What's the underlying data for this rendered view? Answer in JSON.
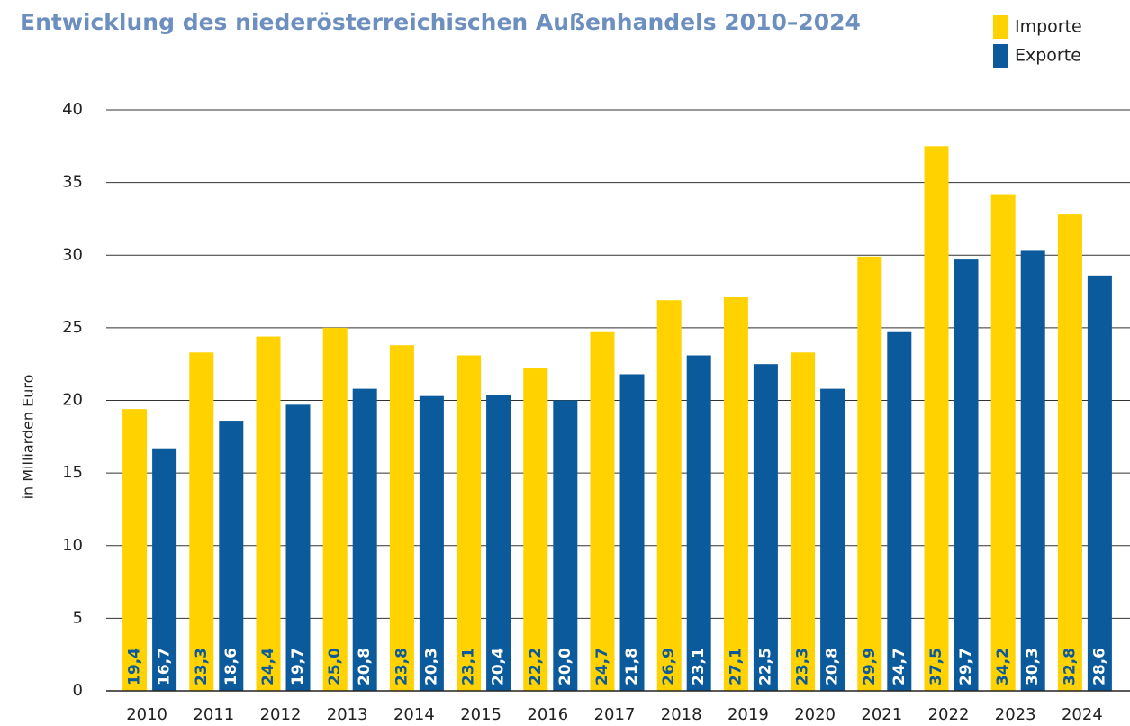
{
  "chart_data": {
    "type": "bar",
    "title": "Entwicklung des niederösterreichischen Außenhandels 2010–2024",
    "y_label": "in Milliarden Euro",
    "categories": [
      "2010",
      "2011",
      "2012",
      "2013",
      "2014",
      "2015",
      "2016",
      "2017",
      "2018",
      "2019",
      "2020",
      "2021",
      "2022",
      "2023",
      "2024"
    ],
    "series": [
      {
        "name": "Importe",
        "color": "#ffd200",
        "values": [
          19.4,
          23.3,
          24.4,
          25.0,
          23.8,
          23.1,
          22.2,
          24.7,
          26.9,
          27.1,
          23.3,
          29.9,
          37.5,
          34.2,
          32.8
        ],
        "value_labels": [
          "19,4",
          "23,3",
          "24,4",
          "25,0",
          "23,8",
          "23,1",
          "22,2",
          "24,7",
          "26,9",
          "27,1",
          "23,3",
          "29,9",
          "37,5",
          "34,2",
          "32,8"
        ]
      },
      {
        "name": "Exporte",
        "color": "#0a5a9c",
        "values": [
          16.7,
          18.6,
          19.7,
          20.8,
          20.3,
          20.4,
          20.0,
          21.8,
          23.1,
          22.5,
          20.8,
          24.7,
          29.7,
          30.3,
          28.6
        ],
        "value_labels": [
          "16,7",
          "18,6",
          "19,7",
          "20,8",
          "20,3",
          "20,4",
          "20,0",
          "21,8",
          "23,1",
          "22,5",
          "20,8",
          "24,7",
          "29,7",
          "30,3",
          "28,6"
        ]
      }
    ],
    "ylim": [
      0,
      40
    ],
    "yticks": [
      0,
      5,
      10,
      15,
      20,
      25,
      30,
      35,
      40
    ],
    "grid": true,
    "legend": "top-right"
  }
}
